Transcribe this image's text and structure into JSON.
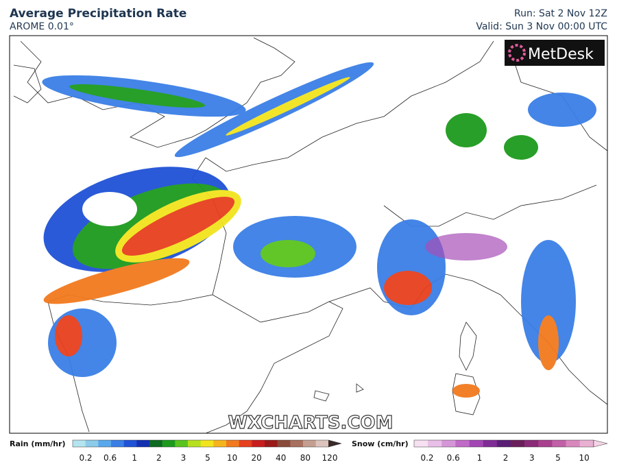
{
  "header": {
    "title": "Average Precipitation Rate",
    "model": "AROME 0.01°",
    "run": "Run: Sat 2 Nov 12Z",
    "valid": "Valid: Sun 3 Nov 00:00 UTC"
  },
  "logo": "MetDesk",
  "watermark": "WXCHARTS.COM",
  "legend": {
    "rain": {
      "label": "Rain (mm/hr)",
      "ticks": [
        0.2,
        0.6,
        1,
        2,
        3,
        5,
        10,
        20,
        40,
        80,
        120
      ],
      "colors": [
        "#b4e4ef",
        "#8ccbe9",
        "#5aa8ec",
        "#3a7fe6",
        "#1f52d6",
        "#1230b0",
        "#0c6a22",
        "#1d9a1d",
        "#5ac41e",
        "#b6e01e",
        "#f2e41e",
        "#f5b41e",
        "#f27a1e",
        "#e6401e",
        "#c81e1e",
        "#9a1a1a",
        "#8a4a3a",
        "#a8705e",
        "#c49e90",
        "#dcc4bc",
        "#3a2a2a"
      ]
    },
    "snow": {
      "label": "Snow (cm/hr)",
      "ticks": [
        0.2,
        0.6,
        1,
        2,
        3,
        5,
        10
      ],
      "colors": [
        "#f6e0f2",
        "#e8bfe6",
        "#d596d8",
        "#c06ac8",
        "#a346b4",
        "#7f2c96",
        "#5a1e74",
        "#6a1e5a",
        "#8a2a78",
        "#a8408e",
        "#c260a6",
        "#d888bc",
        "#e8b0d2",
        "#f4d4e6"
      ]
    }
  }
}
